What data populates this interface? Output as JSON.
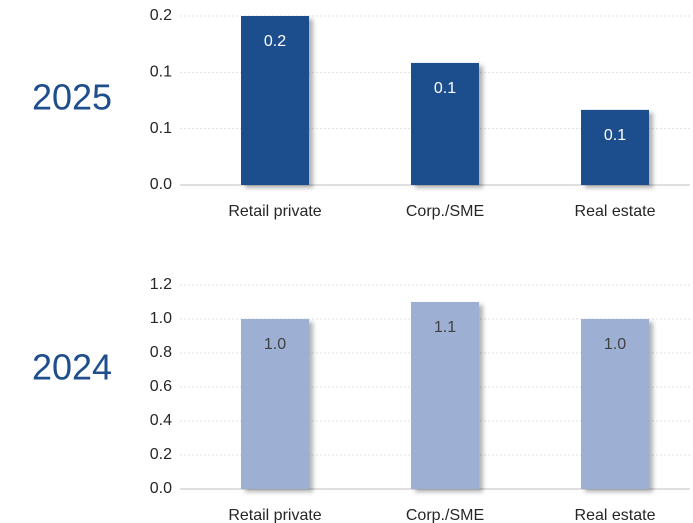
{
  "chart_data": [
    {
      "type": "bar",
      "label": "2025",
      "categories": [
        "Retail private",
        "Corp./SME",
        "Real estate"
      ],
      "values": [
        0.18,
        0.13,
        0.08
      ],
      "value_labels": [
        "0.2",
        "0.1",
        "0.1"
      ],
      "color": "#1f4e8c",
      "value_label_color": "#ffffff",
      "ylim": [
        0,
        0.18
      ],
      "yticks": [
        {
          "value": 0,
          "label": "0.0"
        },
        {
          "value": 0.06,
          "label": "0.1"
        },
        {
          "value": 0.12,
          "label": "0.1"
        },
        {
          "value": 0.18,
          "label": "0.2"
        }
      ],
      "grid": true
    },
    {
      "type": "bar",
      "label": "2024",
      "categories": [
        "Retail private",
        "Corp./SME",
        "Real estate"
      ],
      "values": [
        1.0,
        1.1,
        1.0
      ],
      "value_labels": [
        "1.0",
        "1.1",
        "1.0"
      ],
      "color": "#9dafd3",
      "value_label_color": "#404040",
      "ylim": [
        0,
        1.2
      ],
      "yticks": [
        {
          "value": 0,
          "label": "0.0"
        },
        0.2,
        0.4,
        0.6,
        0.8,
        {
          "value": 1.0,
          "label": "1.0"
        },
        1.2
      ],
      "grid": true
    }
  ]
}
